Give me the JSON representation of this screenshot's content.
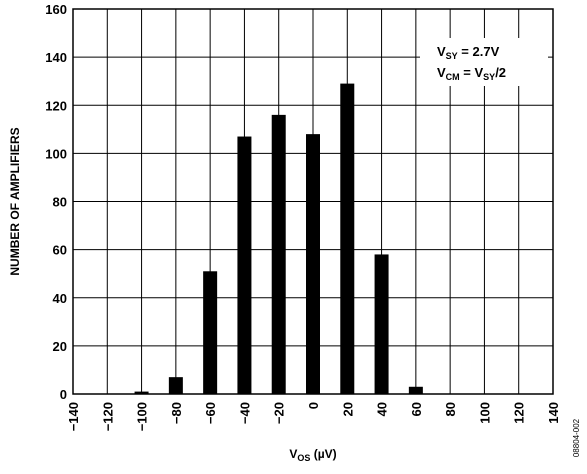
{
  "chart_data": {
    "type": "bar",
    "categories": [
      "−140",
      "−120",
      "−100",
      "−80",
      "−60",
      "−40",
      "−20",
      "0",
      "20",
      "40",
      "60",
      "80",
      "100",
      "120",
      "140"
    ],
    "x": [
      -140,
      -120,
      -100,
      -80,
      -60,
      -40,
      -20,
      0,
      20,
      40,
      60,
      80,
      100,
      120,
      140
    ],
    "values": [
      0,
      0,
      1,
      7,
      51,
      107,
      116,
      108,
      129,
      58,
      3,
      0,
      0,
      0,
      0
    ],
    "xlabel": {
      "main": "V",
      "sub": "OS",
      "rest": " (µV)"
    },
    "ylabel": "NUMBER OF AMPLIFIERS",
    "xlim": [
      -140,
      140
    ],
    "ylim": [
      0,
      160
    ],
    "yticks": [
      "0",
      "20",
      "40",
      "60",
      "80",
      "100",
      "120",
      "140",
      "160"
    ],
    "grid": true,
    "annotation": {
      "line1": {
        "main": "V",
        "sub": "SY",
        "rest": " = 2.7V"
      },
      "line2": {
        "main": "V",
        "sub": "CM",
        "mid": " = V",
        "sub2": "SY",
        "rest": "/2"
      },
      "placement": "top-right"
    },
    "figure_code": "08804-002",
    "colors": {
      "bars": "#000000",
      "grid": "#000000",
      "annotation_bg": "#ffffff"
    }
  }
}
